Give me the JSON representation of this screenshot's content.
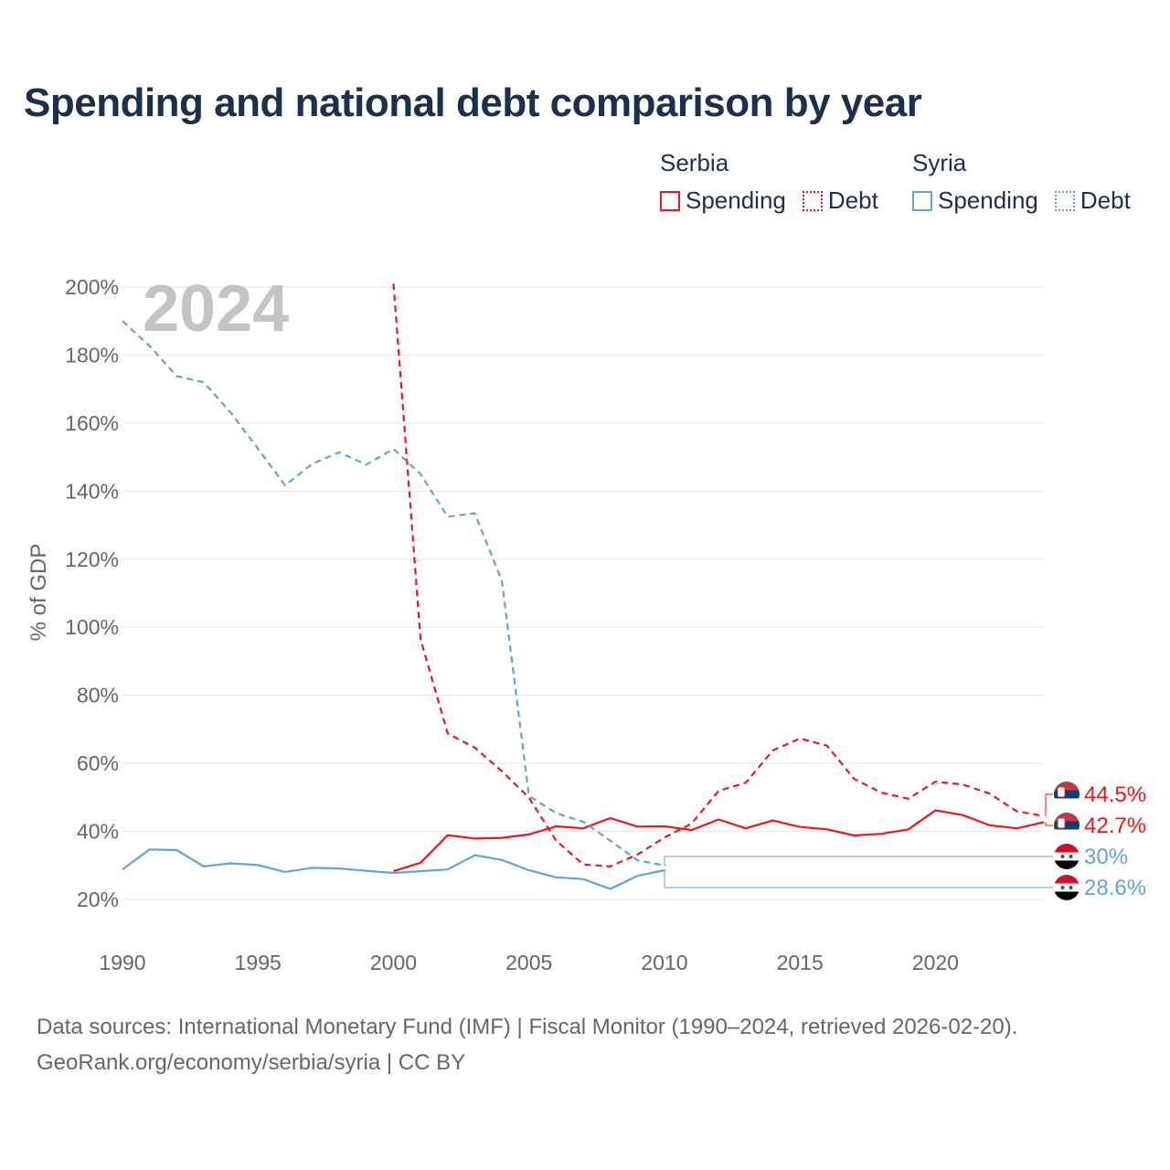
{
  "title": "Spending and national debt comparison by year",
  "legend": {
    "serbia": {
      "country": "Serbia",
      "spending": "Spending",
      "debt": "Debt"
    },
    "syria": {
      "country": "Syria",
      "spending": "Spending",
      "debt": "Debt"
    }
  },
  "colors": {
    "serbia": "#e8191c",
    "syria": "#5fa3df",
    "grid": "#e6e6e6",
    "axis_text": "#666666",
    "year": "#c4c4c4",
    "title": "#1b2f4e"
  },
  "footer": {
    "line1": "Data sources: International Monetary Fund (IMF) | Fiscal Monitor (1990–2024, retrieved 2026-02-20).",
    "line2": "GeoRank.org/economy/serbia/syria | CC BY"
  },
  "chart_data": {
    "type": "line",
    "title": "Spending and national debt comparison by year",
    "year_label": "2024",
    "ylabel": "% of GDP",
    "xlabel": "",
    "xlim": [
      1990,
      2024
    ],
    "ylim": [
      10,
      200
    ],
    "yticks": [
      20,
      40,
      60,
      80,
      100,
      120,
      140,
      160,
      180,
      200
    ],
    "ytick_labels": [
      "20%",
      "40%",
      "60%",
      "80%",
      "100%",
      "120%",
      "140%",
      "160%",
      "180%",
      "200%"
    ],
    "xticks": [
      1990,
      1995,
      2000,
      2005,
      2010,
      2015,
      2020
    ],
    "xtick_labels": [
      "1990",
      "1995",
      "2000",
      "2005",
      "2010",
      "2015",
      "2020"
    ],
    "series": [
      {
        "name": "Serbia Spending",
        "country": "serbia",
        "style": "solid",
        "x": [
          2000,
          2001,
          2002,
          2003,
          2004,
          2005,
          2006,
          2007,
          2008,
          2009,
          2010,
          2011,
          2012,
          2013,
          2014,
          2015,
          2016,
          2017,
          2018,
          2019,
          2020,
          2021,
          2022,
          2023,
          2024
        ],
        "values": [
          28.3,
          30.8,
          38.9,
          37.9,
          38.1,
          39.1,
          41.5,
          40.9,
          43.9,
          41.4,
          41.5,
          40.4,
          43.5,
          40.9,
          43.2,
          41.3,
          40.6,
          38.8,
          39.3,
          40.6,
          46.2,
          44.8,
          41.8,
          40.9,
          42.7
        ]
      },
      {
        "name": "Serbia Debt",
        "country": "serbia",
        "style": "dashed",
        "x": [
          2000,
          2001,
          2002,
          2003,
          2004,
          2005,
          2006,
          2007,
          2008,
          2009,
          2010,
          2011,
          2012,
          2013,
          2014,
          2015,
          2016,
          2017,
          2018,
          2019,
          2020,
          2021,
          2022,
          2023,
          2024
        ],
        "values": [
          201,
          96.5,
          68.8,
          64.6,
          57.7,
          49.9,
          37.3,
          30.3,
          29.7,
          33.2,
          38.2,
          42.3,
          51.9,
          54.3,
          63.8,
          67.3,
          65.2,
          55.4,
          51.4,
          49.6,
          54.6,
          53.8,
          51.1,
          45.9,
          44.5
        ]
      },
      {
        "name": "Syria Spending",
        "country": "syria",
        "style": "solid",
        "x": [
          1990,
          1991,
          1992,
          1993,
          1994,
          1995,
          1996,
          1997,
          1998,
          1999,
          2000,
          2001,
          2002,
          2003,
          2004,
          2005,
          2006,
          2007,
          2008,
          2009,
          2010
        ],
        "values": [
          28.8,
          34.7,
          34.5,
          29.7,
          30.6,
          30.1,
          28.1,
          29.3,
          29.1,
          28.4,
          27.8,
          28.3,
          28.8,
          33,
          31.6,
          28.6,
          26.5,
          26,
          23.1,
          26.9,
          28.6
        ]
      },
      {
        "name": "Syria Debt",
        "country": "syria",
        "style": "dashed",
        "x": [
          1990,
          1991,
          1992,
          1993,
          1994,
          1995,
          1996,
          1997,
          1998,
          1999,
          2000,
          2001,
          2002,
          2003,
          2004,
          2005,
          2006,
          2007,
          2008,
          2009,
          2010
        ],
        "values": [
          190,
          182.7,
          173.8,
          172,
          163,
          152.5,
          141.7,
          148,
          151.4,
          147.8,
          152.4,
          145,
          132.5,
          133.5,
          113.6,
          50.4,
          45.4,
          42.8,
          37.3,
          31.5,
          30
        ]
      }
    ],
    "end_labels": [
      {
        "series": "Serbia Debt",
        "country": "serbia",
        "value": 44.5,
        "label": "44.5%"
      },
      {
        "series": "Serbia Spending",
        "country": "serbia",
        "value": 42.7,
        "label": "42.7%"
      },
      {
        "series": "Syria Debt",
        "country": "syria",
        "value": 30,
        "label": "30%"
      },
      {
        "series": "Syria Spending",
        "country": "syria",
        "value": 28.6,
        "label": "28.6%"
      }
    ]
  }
}
